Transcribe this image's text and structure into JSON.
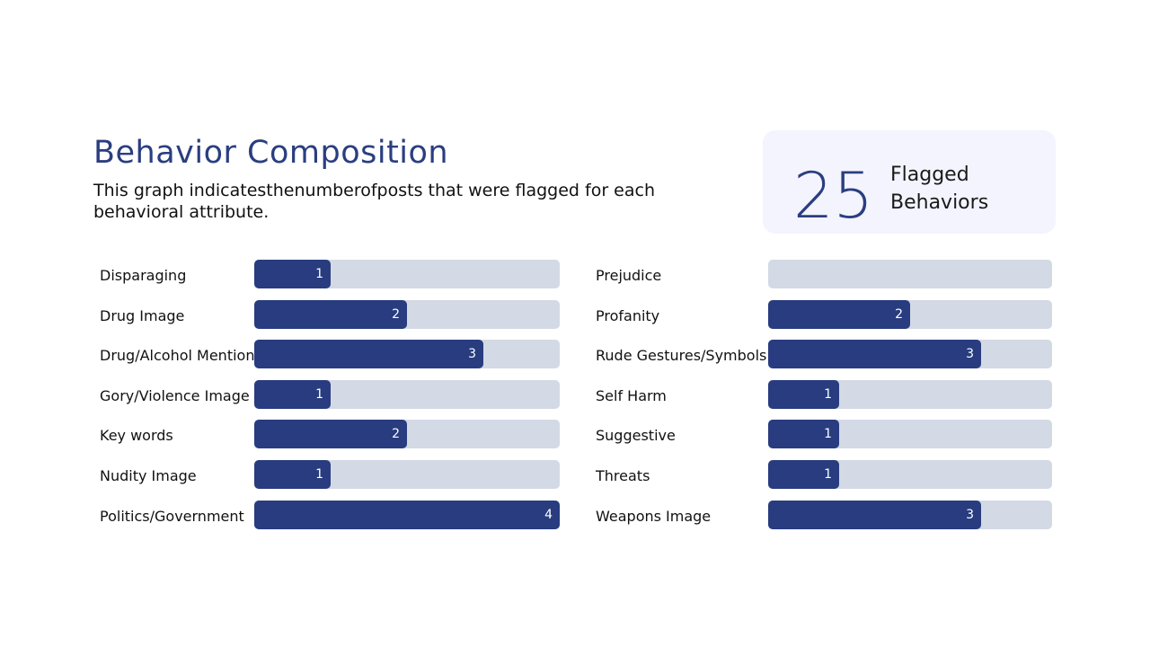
{
  "header": {
    "title": "Behavior Composition",
    "subtitle": "This graph indicatesthenumberofposts that were flagged for each behavioral attribute."
  },
  "summary": {
    "count": "25",
    "label": "Flagged Behaviors"
  },
  "colors": {
    "accent": "#283c7f",
    "track": "#d3d9e5",
    "card": "#f3f4fd"
  },
  "chart_data": {
    "type": "bar",
    "orientation": "horizontal",
    "title": "Behavior Composition",
    "xlim": [
      0,
      4
    ],
    "columns": [
      {
        "categories": [
          "Disparaging",
          "Drug Image",
          "Drug/Alcohol Mention",
          "Gory/Violence Image",
          "Key words",
          "Nudity Image",
          "Politics/Government"
        ],
        "values": [
          1,
          2,
          3,
          1,
          2,
          1,
          4
        ]
      },
      {
        "categories": [
          "Prejudice",
          "Profanity",
          "Rude Gestures/Symbols",
          "Self Harm",
          "Suggestive",
          "Threats",
          "Weapons Image"
        ],
        "values": [
          0,
          2,
          3,
          1,
          1,
          1,
          3
        ]
      }
    ]
  }
}
